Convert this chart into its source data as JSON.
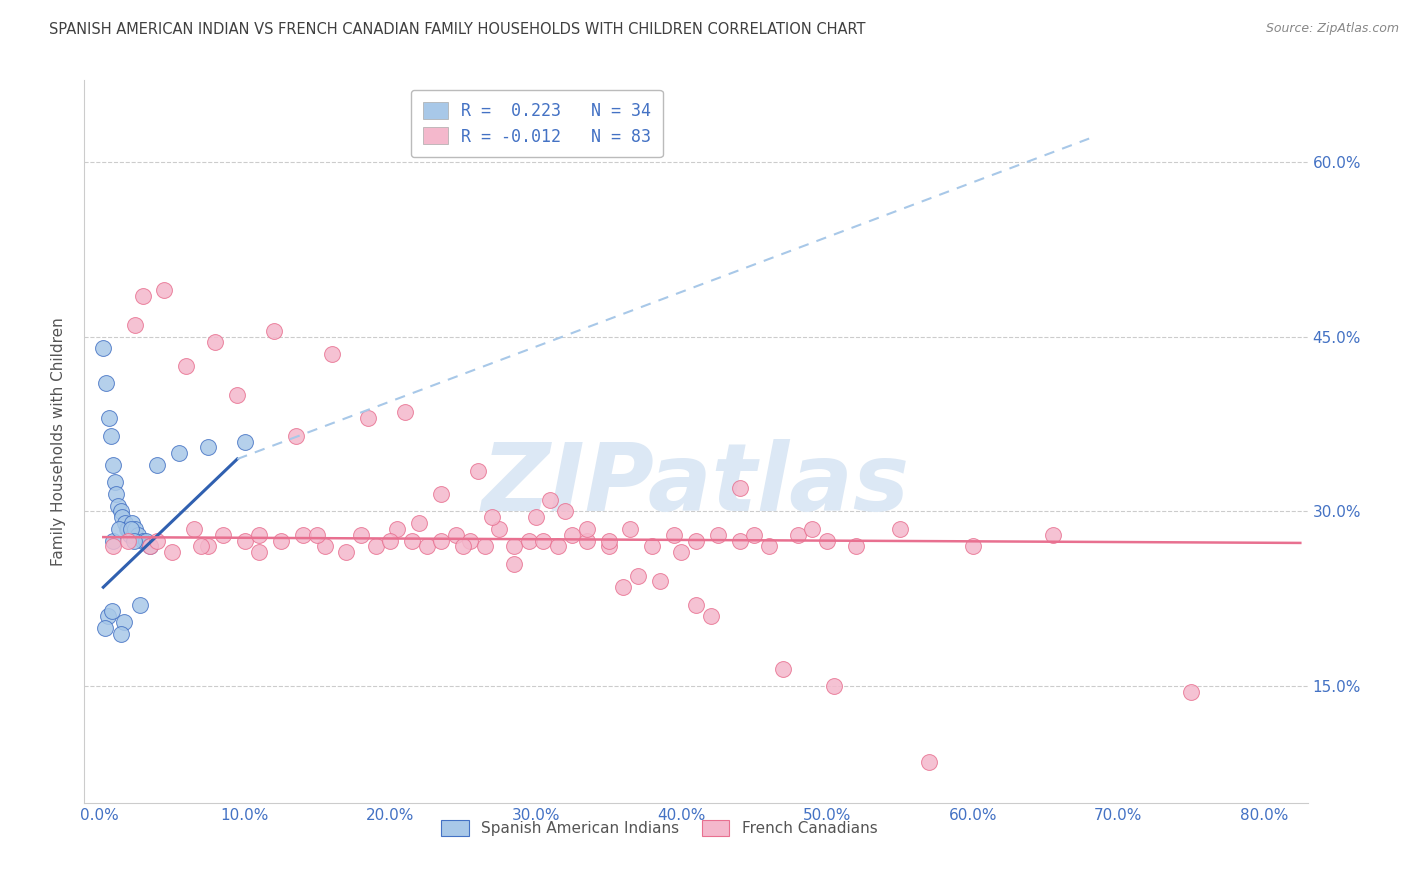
{
  "title": "SPANISH AMERICAN INDIAN VS FRENCH CANADIAN FAMILY HOUSEHOLDS WITH CHILDREN CORRELATION CHART",
  "source": "Source: ZipAtlas.com",
  "ylabel": "Family Households with Children",
  "xlabel_ticks": [
    0.0,
    10.0,
    20.0,
    30.0,
    40.0,
    50.0,
    60.0,
    70.0,
    80.0
  ],
  "ylabel_ticks": [
    15.0,
    30.0,
    45.0,
    60.0
  ],
  "xmin": -1.0,
  "xmax": 83.0,
  "ymin": 5.0,
  "ymax": 67.0,
  "legend_entries": [
    {
      "label": "R =  0.223   N = 34",
      "color": "#a8c8e8"
    },
    {
      "label": "R = -0.012   N = 83",
      "color": "#f4a8c0"
    }
  ],
  "blue_scatter_x": [
    0.3,
    0.5,
    0.7,
    0.8,
    1.0,
    1.1,
    1.2,
    1.3,
    1.5,
    1.6,
    1.8,
    1.9,
    2.0,
    2.1,
    2.3,
    2.5,
    2.7,
    3.0,
    3.2,
    3.5,
    4.0,
    5.5,
    7.5,
    1.0,
    1.4,
    2.2,
    0.6,
    0.9,
    1.7,
    2.8,
    0.4,
    1.5,
    2.4,
    10.0
  ],
  "blue_scatter_y": [
    44.0,
    41.0,
    38.0,
    36.5,
    34.0,
    32.5,
    31.5,
    30.5,
    30.0,
    29.5,
    29.0,
    28.5,
    28.5,
    28.0,
    29.0,
    28.5,
    28.0,
    27.5,
    27.5,
    27.0,
    34.0,
    35.0,
    35.5,
    27.5,
    28.5,
    28.5,
    21.0,
    21.5,
    20.5,
    22.0,
    20.0,
    19.5,
    27.5,
    36.0
  ],
  "pink_scatter_x": [
    1.0,
    2.0,
    3.5,
    5.0,
    6.5,
    7.5,
    8.5,
    10.0,
    11.0,
    12.5,
    14.0,
    15.5,
    17.0,
    18.0,
    19.0,
    20.5,
    21.5,
    22.5,
    23.5,
    24.5,
    25.5,
    26.5,
    27.5,
    28.5,
    29.5,
    30.5,
    31.5,
    32.5,
    33.5,
    35.0,
    36.5,
    38.0,
    39.5,
    41.0,
    42.5,
    44.0,
    46.0,
    48.0,
    50.0,
    52.0,
    55.0,
    60.0,
    65.5,
    75.0,
    2.5,
    4.5,
    8.0,
    12.0,
    16.0,
    21.0,
    26.0,
    31.0,
    36.0,
    41.0,
    22.0,
    27.0,
    32.0,
    37.0,
    42.0,
    47.0,
    3.0,
    6.0,
    9.5,
    13.5,
    18.5,
    23.5,
    28.5,
    33.5,
    38.5,
    44.0,
    49.0,
    4.0,
    7.0,
    11.0,
    15.0,
    20.0,
    25.0,
    30.0,
    35.0,
    40.0,
    45.0,
    50.5,
    57.0
  ],
  "pink_scatter_y": [
    27.0,
    27.5,
    27.0,
    26.5,
    28.5,
    27.0,
    28.0,
    27.5,
    28.0,
    27.5,
    28.0,
    27.0,
    26.5,
    28.0,
    27.0,
    28.5,
    27.5,
    27.0,
    27.5,
    28.0,
    27.5,
    27.0,
    28.5,
    27.0,
    27.5,
    27.5,
    27.0,
    28.0,
    27.5,
    27.0,
    28.5,
    27.0,
    28.0,
    27.5,
    28.0,
    27.5,
    27.0,
    28.0,
    27.5,
    27.0,
    28.5,
    27.0,
    28.0,
    14.5,
    46.0,
    49.0,
    44.5,
    45.5,
    43.5,
    38.5,
    33.5,
    31.0,
    23.5,
    22.0,
    29.0,
    29.5,
    30.0,
    24.5,
    21.0,
    16.5,
    48.5,
    42.5,
    40.0,
    36.5,
    38.0,
    31.5,
    25.5,
    28.5,
    24.0,
    32.0,
    28.5,
    27.5,
    27.0,
    26.5,
    28.0,
    27.5,
    27.0,
    29.5,
    27.5,
    26.5,
    28.0,
    15.0,
    8.5
  ],
  "blue_line_x1": 0.3,
  "blue_line_x2": 9.5,
  "blue_line_y1": 23.5,
  "blue_line_y2": 34.5,
  "blue_dashed_x1": 9.5,
  "blue_dashed_x2": 68.0,
  "blue_dashed_y1": 34.5,
  "blue_dashed_y2": 62.0,
  "pink_line_x1": 0.3,
  "pink_line_x2": 82.5,
  "pink_line_y1": 27.8,
  "pink_line_y2": 27.3,
  "blue_color": "#4472c4",
  "blue_line_color": "#3060b0",
  "pink_color": "#e87090",
  "blue_scatter_color": "#a8c8e8",
  "pink_scatter_color": "#f4b8cc",
  "grid_color": "#cccccc",
  "title_color": "#404040",
  "axis_tick_color": "#4472c4",
  "watermark_color": "#dce8f5",
  "watermark_text": "ZIPatlas",
  "background_color": "#ffffff"
}
